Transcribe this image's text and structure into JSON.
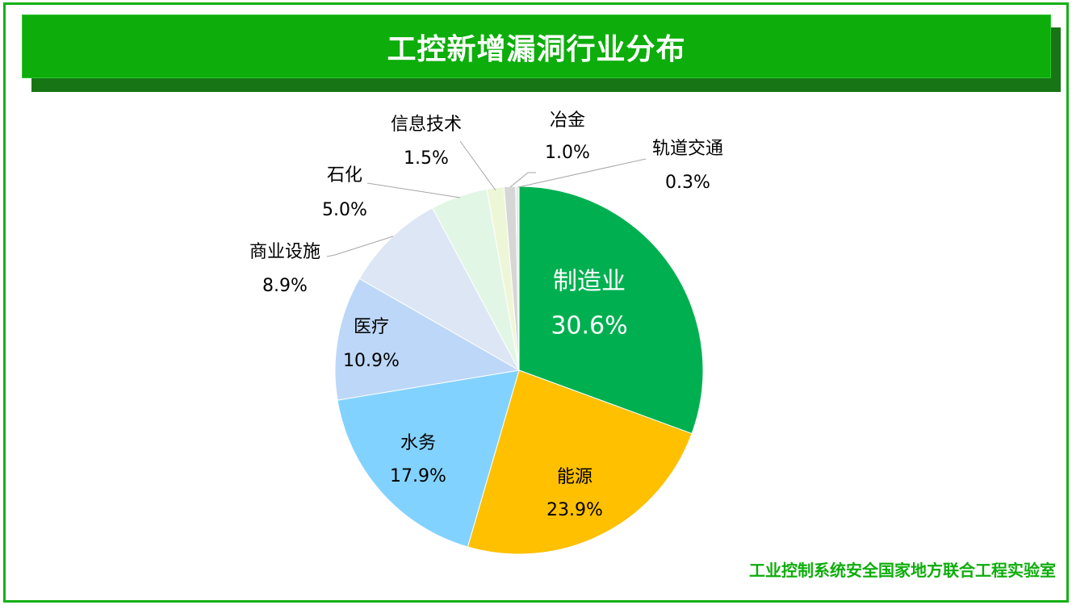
{
  "title": "工控新增漏洞行业分布",
  "footer": "工业控制系统安全国家地方联合工程实验室",
  "chart_data": {
    "type": "pie",
    "title": "工控新增漏洞行业分布",
    "start": "top",
    "direction": "clockwise",
    "slices": [
      {
        "label": "制造业",
        "value": 30.6,
        "text": "30.6%",
        "color": "#00b050"
      },
      {
        "label": "能源",
        "value": 23.9,
        "text": "23.9%",
        "color": "#ffc000"
      },
      {
        "label": "水务",
        "value": 17.9,
        "text": "17.9%",
        "color": "#82d2ff"
      },
      {
        "label": "医疗",
        "value": 10.9,
        "text": "10.9%",
        "color": "#bdd7f8"
      },
      {
        "label": "商业设施",
        "value": 8.9,
        "text": "8.9%",
        "color": "#dce6f5"
      },
      {
        "label": "石化",
        "value": 5.0,
        "text": "5.0%",
        "color": "#e2f6e6"
      },
      {
        "label": "信息技术",
        "value": 1.5,
        "text": "1.5%",
        "color": "#eef6d8"
      },
      {
        "label": "冶金",
        "value": 1.0,
        "text": "1.0%",
        "color": "#d6d6d6"
      },
      {
        "label": "轨道交通",
        "value": 0.3,
        "text": "0.3%",
        "color": "#e6ece6"
      }
    ]
  }
}
